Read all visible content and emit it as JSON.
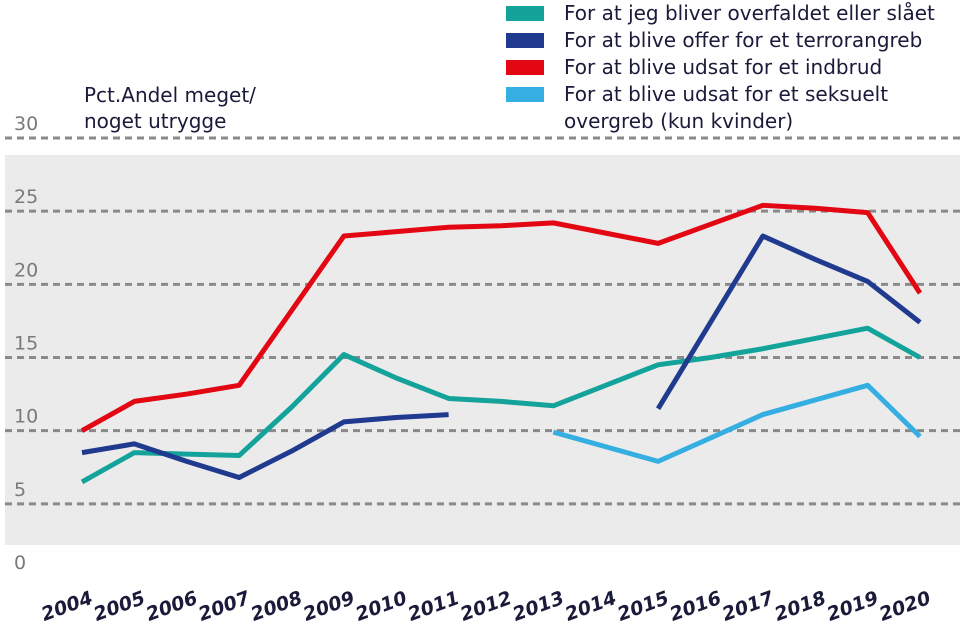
{
  "chart_data": {
    "type": "line",
    "y_label_lines": [
      "Pct.Andel meget/",
      "noget utrygge"
    ],
    "categories": [
      "2004",
      "2005",
      "2006",
      "2007",
      "2008",
      "2009",
      "2010",
      "2011",
      "2012",
      "2013",
      "2014",
      "2015",
      "2016",
      "2017",
      "2018",
      "2019",
      "2020"
    ],
    "series": [
      {
        "name": "For at jeg bliver overfaldet eller slået",
        "color": "#14a39a",
        "values": [
          6.5,
          8.5,
          8.4,
          8.3,
          11.6,
          15.2,
          13.6,
          12.2,
          12.0,
          11.7,
          13.1,
          14.5,
          15.0,
          15.6,
          16.3,
          17.0,
          15.0
        ]
      },
      {
        "name": "For at blive offer for et terrorangreb",
        "color": "#1f3a8f",
        "values": [
          8.5,
          9.1,
          7.9,
          6.8,
          8.6,
          10.6,
          10.9,
          11.1,
          null,
          null,
          null,
          11.5,
          17.4,
          23.3,
          21.7,
          20.2,
          17.4
        ]
      },
      {
        "name": "For at blive udsat for et indbrud",
        "color": "#e30613",
        "values": [
          10.0,
          12.0,
          12.5,
          13.1,
          18.2,
          23.3,
          23.6,
          23.9,
          24.0,
          24.2,
          23.5,
          22.8,
          24.1,
          25.4,
          25.2,
          24.9,
          19.4
        ]
      },
      {
        "name": "For at blive udsat for et seksuelt overgreb (kun kvinder)",
        "color": "#35aee2",
        "values": [
          null,
          null,
          null,
          null,
          null,
          null,
          null,
          null,
          null,
          9.9,
          8.9,
          7.9,
          9.5,
          11.1,
          12.1,
          13.1,
          9.6
        ]
      }
    ],
    "ylim": [
      0,
      30
    ],
    "yticks": [
      0,
      5,
      10,
      15,
      20,
      25,
      30
    ],
    "grid": true
  }
}
